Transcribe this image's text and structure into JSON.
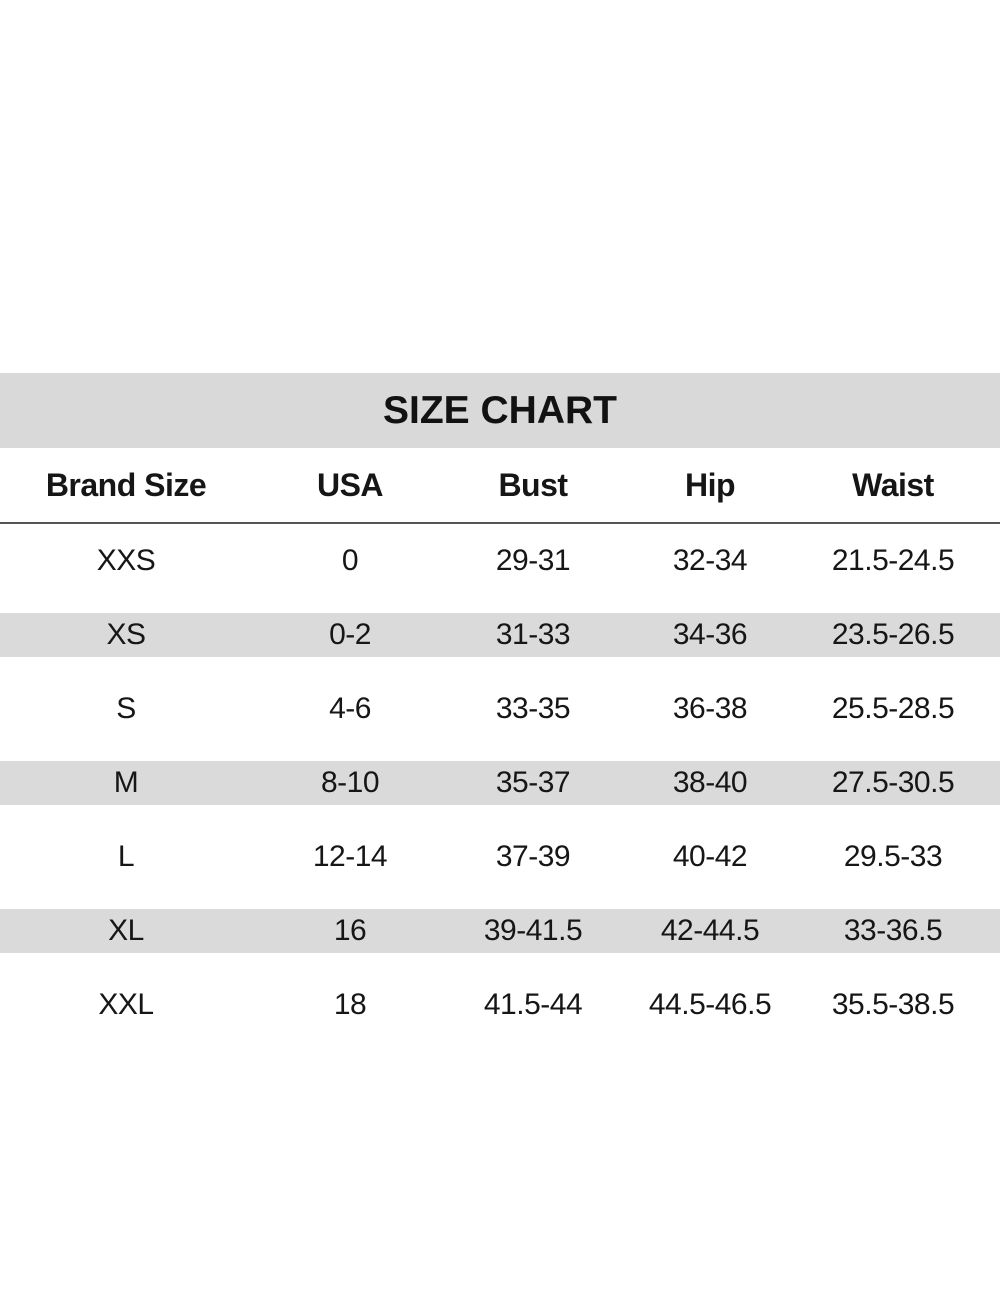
{
  "size_chart": {
    "title": "SIZE CHART",
    "columns": {
      "brand_size": "Brand Size",
      "usa": "USA",
      "bust": "Bust",
      "hip": "Hip",
      "waist": "Waist"
    },
    "rows": [
      {
        "brand_size": "XXS",
        "usa": "0",
        "bust": "29-31",
        "hip": "32-34",
        "waist": "21.5-24.5",
        "shaded": false
      },
      {
        "brand_size": "XS",
        "usa": "0-2",
        "bust": "31-33",
        "hip": "34-36",
        "waist": "23.5-26.5",
        "shaded": true
      },
      {
        "brand_size": "S",
        "usa": "4-6",
        "bust": "33-35",
        "hip": "36-38",
        "waist": "25.5-28.5",
        "shaded": false
      },
      {
        "brand_size": "M",
        "usa": "8-10",
        "bust": "35-37",
        "hip": "38-40",
        "waist": "27.5-30.5",
        "shaded": true
      },
      {
        "brand_size": "L",
        "usa": "12-14",
        "bust": "37-39",
        "hip": "40-42",
        "waist": "29.5-33",
        "shaded": false
      },
      {
        "brand_size": "XL",
        "usa": "16",
        "bust": "39-41.5",
        "hip": "42-44.5",
        "waist": "33-36.5",
        "shaded": true
      },
      {
        "brand_size": "XXL",
        "usa": "18",
        "bust": "41.5-44",
        "hip": "44.5-46.5",
        "waist": "35.5-38.5",
        "shaded": false
      }
    ],
    "colors": {
      "title_band_gray": "#d9d9d9",
      "row_stripe_gray": "#dadada",
      "divider_gray": "#555555",
      "text": "#161616",
      "page_background": "#ffffff"
    }
  }
}
